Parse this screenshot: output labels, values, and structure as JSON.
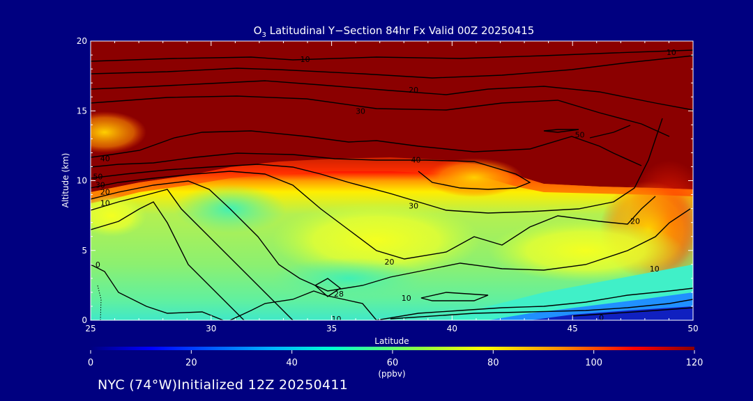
{
  "chart_data": {
    "type": "heatmap",
    "title_prefix": "O",
    "title_subscript": "3",
    "title_rest": " Latitudinal Y−Section 84hr  Fx Valid 00Z 20250415",
    "xlabel": "Latitude",
    "ylabel": "Altitude (km)",
    "xlim": [
      25,
      50
    ],
    "ylim": [
      0,
      20
    ],
    "x_ticks": [
      "25",
      "30",
      "35",
      "40",
      "45",
      "50"
    ],
    "y_ticks": [
      "0",
      "5",
      "10",
      "15",
      "20"
    ],
    "colorbar": {
      "min": 0,
      "max": 120,
      "ticks": [
        "0",
        "20",
        "40",
        "60",
        "80",
        "100",
        "120"
      ],
      "unit": "(ppbv)"
    },
    "contour_levels": [
      10,
      20,
      30,
      40,
      50
    ],
    "contour_labels": [
      {
        "text": "10",
        "lat": 35.2,
        "alt": 0.1
      },
      {
        "text": "20",
        "lat": 37.4,
        "alt": 4.2
      },
      {
        "text": "28",
        "lat": 35.3,
        "alt": 1.9
      },
      {
        "text": "10",
        "lat": 38.1,
        "alt": 1.6
      },
      {
        "text": "30",
        "lat": 38.4,
        "alt": 8.2
      },
      {
        "text": "40",
        "lat": 38.5,
        "alt": 11.5
      },
      {
        "text": "50",
        "lat": 45.3,
        "alt": 13.3
      },
      {
        "text": "30",
        "lat": 36.2,
        "alt": 15.0
      },
      {
        "text": "20",
        "lat": 38.4,
        "alt": 16.5
      },
      {
        "text": "10",
        "lat": 33.9,
        "alt": 18.7
      },
      {
        "text": "10",
        "lat": 49.1,
        "alt": 19.2
      },
      {
        "text": "20",
        "lat": 47.6,
        "alt": 7.1
      },
      {
        "text": "10",
        "lat": 48.4,
        "alt": 3.7
      },
      {
        "text": "0",
        "lat": 46.2,
        "alt": 0.2
      },
      {
        "text": "40",
        "lat": 25.6,
        "alt": 11.6
      },
      {
        "text": "50",
        "lat": 25.3,
        "alt": 10.3
      },
      {
        "text": "30",
        "lat": 25.4,
        "alt": 9.7
      },
      {
        "text": "20",
        "lat": 25.6,
        "alt": 9.2
      },
      {
        "text": "10",
        "lat": 25.6,
        "alt": 8.4
      },
      {
        "text": "0",
        "lat": 25.3,
        "alt": 4.0
      }
    ]
  },
  "footer": "NYC (74°W)Initialized 12Z 20250411"
}
